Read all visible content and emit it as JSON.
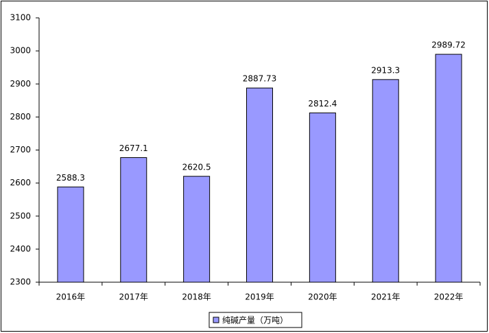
{
  "chart_data": {
    "type": "bar",
    "categories": [
      "2016年",
      "2017年",
      "2018年",
      "2019年",
      "2020年",
      "2021年",
      "2022年"
    ],
    "series": [
      {
        "name": "纯碱产量（万吨）",
        "color": "#9999ff",
        "values": [
          2588.3,
          2677.1,
          2620.5,
          2887.73,
          2812.4,
          2913.3,
          2989.72
        ]
      }
    ],
    "ylim": [
      2300,
      3100
    ],
    "yticks": [
      2300,
      2400,
      2500,
      2600,
      2700,
      2800,
      2900,
      3000,
      3100
    ],
    "grid": false,
    "legend": "bottom"
  }
}
